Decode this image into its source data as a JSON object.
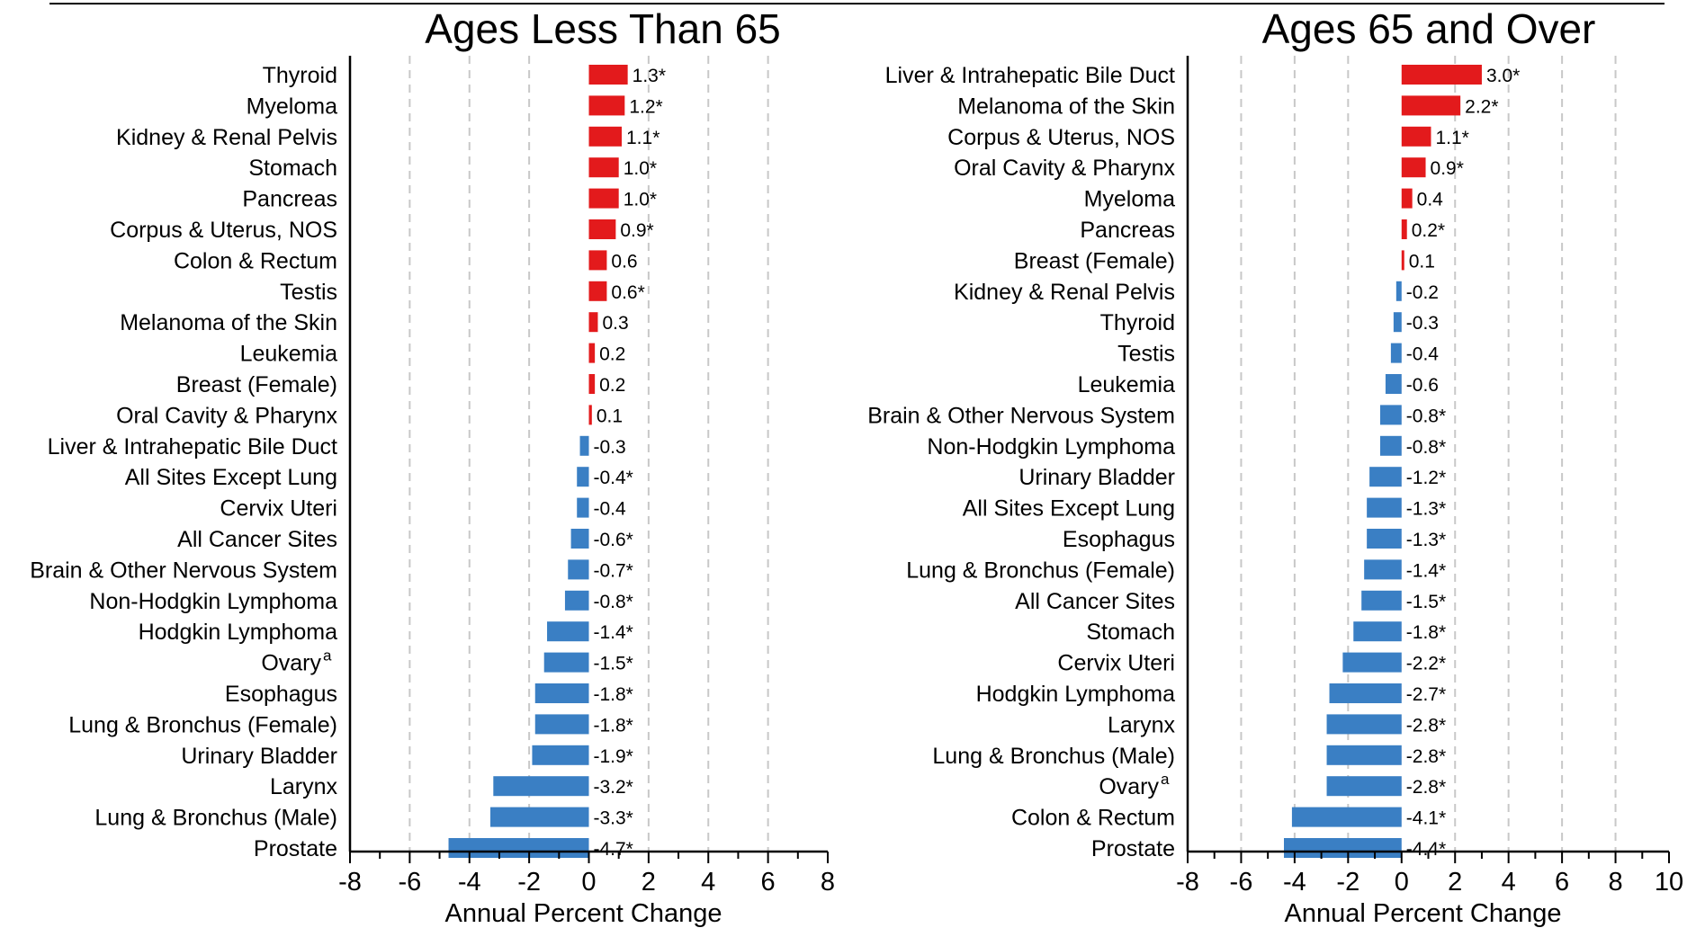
{
  "chart_data": [
    {
      "type": "bar",
      "orientation": "horizontal",
      "title": "Ages Less Than 65",
      "xlabel": "Annual Percent Change",
      "xlim": [
        -8,
        8
      ],
      "xticks": [
        -8,
        -6,
        -4,
        -2,
        0,
        2,
        4,
        6,
        8
      ],
      "grid": true,
      "positive_color": "#e31a1c",
      "negative_color": "#3a7fc4",
      "categories": [
        "Thyroid",
        "Myeloma",
        "Kidney & Renal Pelvis",
        "Stomach",
        "Pancreas",
        "Corpus & Uterus, NOS",
        "Colon & Rectum",
        "Testis",
        "Melanoma of the Skin",
        "Leukemia",
        "Breast (Female)",
        "Oral Cavity & Pharynx",
        "Liver & Intrahepatic Bile Duct",
        "All Sites Except Lung",
        "Cervix Uteri",
        "All Cancer Sites",
        "Brain & Other Nervous System",
        "Non-Hodgkin Lymphoma",
        "Hodgkin Lymphoma",
        "Ovary",
        "Esophagus",
        "Lung & Bronchus (Female)",
        "Urinary Bladder",
        "Larynx",
        "Lung & Bronchus (Male)",
        "Prostate"
      ],
      "superscripts": [
        "",
        "",
        "",
        "",
        "",
        "",
        "",
        "",
        "",
        "",
        "",
        "",
        "",
        "",
        "",
        "",
        "",
        "",
        "",
        "a",
        "",
        "",
        "",
        "",
        "",
        ""
      ],
      "values": [
        1.3,
        1.2,
        1.1,
        1.0,
        1.0,
        0.9,
        0.6,
        0.6,
        0.3,
        0.2,
        0.2,
        0.1,
        -0.3,
        -0.4,
        -0.4,
        -0.6,
        -0.7,
        -0.8,
        -1.4,
        -1.5,
        -1.8,
        -1.8,
        -1.9,
        -3.2,
        -3.3,
        -4.7
      ],
      "labels": [
        "1.3*",
        "1.2*",
        "1.1*",
        "1.0*",
        "1.0*",
        "0.9*",
        "0.6",
        "0.6*",
        "0.3",
        "0.2",
        "0.2",
        "0.1",
        "-0.3",
        "-0.4*",
        "-0.4",
        "-0.6*",
        "-0.7*",
        "-0.8*",
        "-1.4*",
        "-1.5*",
        "-1.8*",
        "-1.8*",
        "-1.9*",
        "-3.2*",
        "-3.3*",
        "-4.7*"
      ]
    },
    {
      "type": "bar",
      "orientation": "horizontal",
      "title": "Ages 65 and Over",
      "xlabel": "Annual Percent Change",
      "xlim": [
        -8,
        10
      ],
      "xticks": [
        -8,
        -6,
        -4,
        -2,
        0,
        2,
        4,
        6,
        8,
        10
      ],
      "grid": true,
      "positive_color": "#e31a1c",
      "negative_color": "#3a7fc4",
      "categories": [
        "Liver & Intrahepatic Bile Duct",
        "Melanoma of the Skin",
        "Corpus & Uterus, NOS",
        "Oral Cavity & Pharynx",
        "Myeloma",
        "Pancreas",
        "Breast (Female)",
        "Kidney & Renal Pelvis",
        "Thyroid",
        "Testis",
        "Leukemia",
        "Brain & Other Nervous System",
        "Non-Hodgkin Lymphoma",
        "Urinary Bladder",
        "All Sites Except Lung",
        "Esophagus",
        "Lung & Bronchus (Female)",
        "All Cancer Sites",
        "Stomach",
        "Cervix Uteri",
        "Hodgkin Lymphoma",
        "Larynx",
        "Lung & Bronchus (Male)",
        "Ovary",
        "Colon & Rectum",
        "Prostate"
      ],
      "superscripts": [
        "",
        "",
        "",
        "",
        "",
        "",
        "",
        "",
        "",
        "",
        "",
        "",
        "",
        "",
        "",
        "",
        "",
        "",
        "",
        "",
        "",
        "",
        "",
        "a",
        "",
        ""
      ],
      "values": [
        3.0,
        2.2,
        1.1,
        0.9,
        0.4,
        0.2,
        0.1,
        -0.2,
        -0.3,
        -0.4,
        -0.6,
        -0.8,
        -0.8,
        -1.2,
        -1.3,
        -1.3,
        -1.4,
        -1.5,
        -1.8,
        -2.2,
        -2.7,
        -2.8,
        -2.8,
        -2.8,
        -4.1,
        -4.4
      ],
      "labels": [
        "3.0*",
        "2.2*",
        "1.1*",
        "0.9*",
        "0.4",
        "0.2*",
        "0.1",
        "-0.2",
        "-0.3",
        "-0.4",
        "-0.6",
        "-0.8*",
        "-0.8*",
        "-1.2*",
        "-1.3*",
        "-1.3*",
        "-1.4*",
        "-1.5*",
        "-1.8*",
        "-2.2*",
        "-2.7*",
        "-2.8*",
        "-2.8*",
        "-2.8*",
        "-4.1*",
        "-4.4*"
      ]
    }
  ]
}
